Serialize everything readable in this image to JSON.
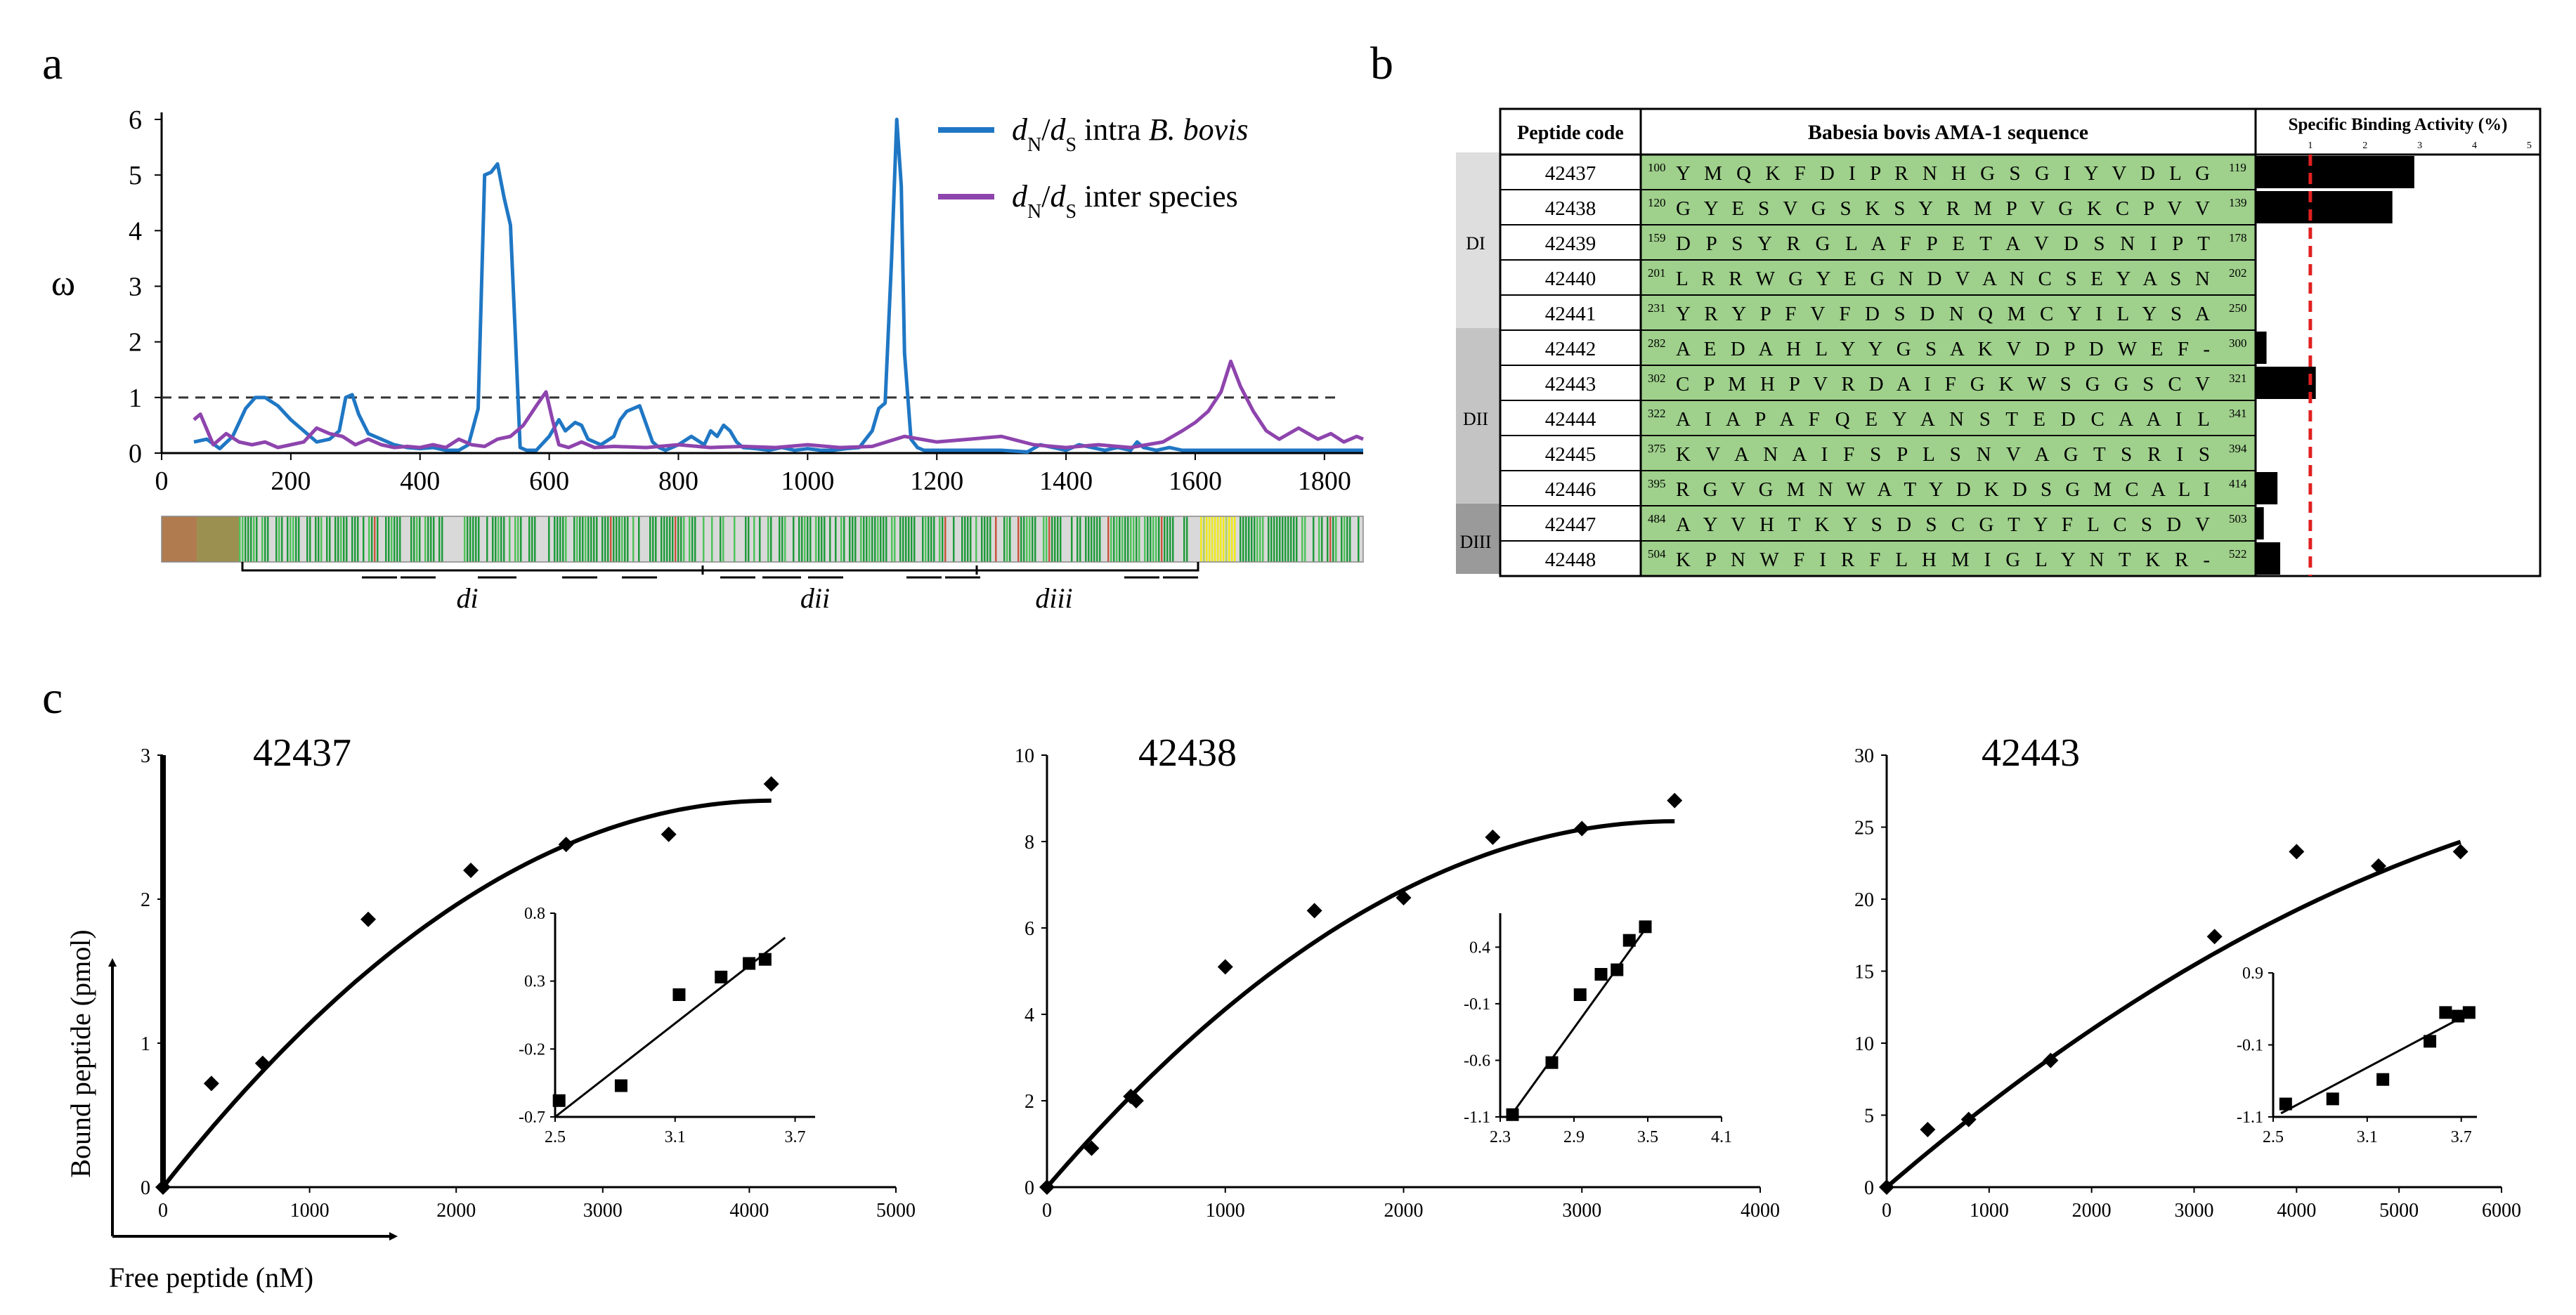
{
  "panel_labels": {
    "a": "a",
    "b": "b",
    "c": "c"
  },
  "panel_a": {
    "ylabel": "ω",
    "legend": [
      {
        "parts": [
          "d",
          "N",
          "/",
          "d",
          "S",
          " intra ",
          "B. bovis"
        ],
        "color": "#1f77c4"
      },
      {
        "parts": [
          "d",
          "N",
          "/",
          "d",
          "S",
          " inter species"
        ],
        "color": "#8e44ad"
      }
    ],
    "domain_labels": [
      "di",
      "dii",
      "diii"
    ],
    "threshold": 1,
    "chart_data": {
      "type": "line",
      "xlim": [
        0,
        1860
      ],
      "ylim": [
        0,
        6
      ],
      "x_ticks": [
        0,
        200,
        400,
        600,
        800,
        1000,
        1200,
        1400,
        1600,
        1800
      ],
      "y_ticks": [
        0,
        1,
        2,
        3,
        4,
        5,
        6
      ],
      "threshold_line": 1,
      "series": [
        {
          "name": "dN/dS intra B. bovis",
          "color": "#1f77c4",
          "x": [
            50,
            70,
            90,
            110,
            130,
            145,
            160,
            180,
            200,
            220,
            240,
            260,
            275,
            285,
            295,
            305,
            320,
            340,
            360,
            380,
            400,
            420,
            440,
            460,
            475,
            490,
            500,
            510,
            520,
            530,
            540,
            548,
            555,
            565,
            580,
            600,
            615,
            625,
            640,
            650,
            660,
            680,
            700,
            710,
            720,
            740,
            760,
            770,
            780,
            800,
            820,
            840,
            850,
            860,
            870,
            880,
            890,
            900,
            920,
            940,
            960,
            980,
            1000,
            1020,
            1040,
            1060,
            1080,
            1100,
            1110,
            1120,
            1130,
            1138,
            1145,
            1150,
            1160,
            1170,
            1180,
            1200,
            1300,
            1340,
            1360,
            1380,
            1400,
            1420,
            1440,
            1460,
            1480,
            1500,
            1510,
            1520,
            1540,
            1560,
            1580,
            1600,
            1650,
            1700,
            1750,
            1800,
            1860
          ],
          "values": [
            0.2,
            0.25,
            0.08,
            0.3,
            0.8,
            1.0,
            1.0,
            0.85,
            0.6,
            0.4,
            0.2,
            0.25,
            0.4,
            1.0,
            1.05,
            0.7,
            0.35,
            0.25,
            0.15,
            0.1,
            0.08,
            0.1,
            0.05,
            0.05,
            0.15,
            0.8,
            5.0,
            5.05,
            5.2,
            4.6,
            4.1,
            2.0,
            0.1,
            0.05,
            0.05,
            0.3,
            0.6,
            0.4,
            0.55,
            0.5,
            0.25,
            0.15,
            0.3,
            0.6,
            0.75,
            0.85,
            0.2,
            0.1,
            0.05,
            0.15,
            0.3,
            0.15,
            0.4,
            0.3,
            0.5,
            0.4,
            0.2,
            0.1,
            0.08,
            0.05,
            0.1,
            0.05,
            0.08,
            0.05,
            0.05,
            0.08,
            0.1,
            0.4,
            0.8,
            0.9,
            3.5,
            6.0,
            4.8,
            1.8,
            0.25,
            0.1,
            0.05,
            0.05,
            0.05,
            0.02,
            0.15,
            0.1,
            0.05,
            0.15,
            0.1,
            0.05,
            0.1,
            0.05,
            0.2,
            0.1,
            0.05,
            0.1,
            0.05,
            0.05,
            0.05,
            0.05,
            0.05,
            0.05,
            0.05
          ]
        },
        {
          "name": "dN/dS inter species",
          "color": "#8e44ad",
          "x": [
            50,
            60,
            80,
            100,
            120,
            140,
            160,
            180,
            200,
            220,
            240,
            260,
            280,
            300,
            320,
            340,
            360,
            380,
            400,
            420,
            440,
            460,
            480,
            500,
            520,
            540,
            560,
            580,
            595,
            605,
            615,
            630,
            650,
            670,
            700,
            750,
            800,
            850,
            900,
            950,
            1000,
            1050,
            1100,
            1150,
            1200,
            1250,
            1300,
            1350,
            1400,
            1450,
            1500,
            1550,
            1580,
            1600,
            1620,
            1640,
            1655,
            1670,
            1690,
            1710,
            1730,
            1760,
            1790,
            1810,
            1830,
            1850,
            1860
          ],
          "values": [
            0.6,
            0.7,
            0.15,
            0.35,
            0.2,
            0.15,
            0.2,
            0.1,
            0.15,
            0.2,
            0.45,
            0.35,
            0.3,
            0.15,
            0.25,
            0.15,
            0.1,
            0.12,
            0.1,
            0.15,
            0.1,
            0.25,
            0.15,
            0.12,
            0.25,
            0.3,
            0.5,
            0.85,
            1.1,
            0.6,
            0.15,
            0.1,
            0.2,
            0.1,
            0.12,
            0.1,
            0.15,
            0.1,
            0.12,
            0.1,
            0.15,
            0.1,
            0.12,
            0.3,
            0.2,
            0.25,
            0.3,
            0.15,
            0.1,
            0.15,
            0.1,
            0.2,
            0.4,
            0.55,
            0.75,
            1.1,
            1.65,
            1.2,
            0.75,
            0.4,
            0.25,
            0.45,
            0.25,
            0.35,
            0.2,
            0.3,
            0.25
          ]
        }
      ]
    }
  },
  "panel_b": {
    "headers": {
      "code": "Peptide code",
      "seq": "Babesia bovis AMA-1 sequence",
      "act": "Specific Binding Activity (%)"
    },
    "act_ticks": [
      "1",
      "2",
      "3",
      "4",
      "5"
    ],
    "threshold": 1,
    "domains": [
      "DI",
      "DII",
      "DIII"
    ],
    "rows": [
      {
        "code": "42437",
        "start": "100",
        "seq": "Y M Q K F D I P R N H G S G I Y V D L G",
        "end": "119",
        "activity": 2.9
      },
      {
        "code": "42438",
        "start": "120",
        "seq": "G Y E S V G S K S Y R M P V G K C P V V",
        "end": "139",
        "activity": 2.5
      },
      {
        "code": "42439",
        "start": "159",
        "seq": "D P S Y R G L A F P E T A V D S N I P T",
        "end": "178",
        "activity": 0
      },
      {
        "code": "42440",
        "start": "201",
        "seq": "L R R W G Y E G N D V A N C S E Y A S N",
        "end": "202",
        "activity": 0
      },
      {
        "code": "42441",
        "start": "231",
        "seq": "Y R Y P F V F D S D N Q M C Y I L Y S A",
        "end": "250",
        "activity": 0
      },
      {
        "code": "42442",
        "start": "282",
        "seq": "A E D A H L Y Y G S A K V D P D W E F -",
        "end": "300",
        "activity": 0.2
      },
      {
        "code": "42443",
        "start": "302",
        "seq": "C P M H P V R D A I F G K W S G G S C V",
        "end": "321",
        "activity": 1.1
      },
      {
        "code": "42444",
        "start": "322",
        "seq": "A I A P A F Q E Y A N S T E D C A A I L",
        "end": "341",
        "activity": 0
      },
      {
        "code": "42445",
        "start": "375",
        "seq": "K V A N A I F S P L S N V A G T S R I S",
        "end": "394",
        "activity": 0
      },
      {
        "code": "42446",
        "start": "395",
        "seq": "R G V G M N W A T Y D K D S G M C A L I",
        "end": "414",
        "activity": 0.4
      },
      {
        "code": "42447",
        "start": "484",
        "seq": "A Y V H T K Y S D S C G T Y F L C S D V",
        "end": "503",
        "activity": 0.15
      },
      {
        "code": "42448",
        "start": "504",
        "seq": "K P N W F I R F L H M I G L Y N T K R -",
        "end": "522",
        "activity": 0.45
      }
    ]
  },
  "panel_c": {
    "ylabel": "Bound peptide (pmol)",
    "xlabel": "Free peptide (nM)",
    "chart_data": [
      {
        "type": "scatter",
        "title": "42437",
        "xlim": [
          0,
          5000
        ],
        "ylim": [
          0,
          3
        ],
        "x_ticks": [
          0,
          1000,
          2000,
          3000,
          4000,
          5000
        ],
        "y_ticks": [
          0,
          1,
          2,
          3
        ],
        "x": [
          0,
          330,
          680,
          1400,
          2100,
          2750,
          3450,
          4150
        ],
        "values": [
          0,
          0.72,
          0.86,
          1.86,
          2.2,
          2.38,
          2.45,
          2.8
        ],
        "fit": {
          "type": "quadratic",
          "a": -1.55e-07,
          "b": 0.00129,
          "c": 0,
          "x_end": 4150
        },
        "inset": {
          "xlim": [
            2.5,
            3.8
          ],
          "ylim": [
            -0.7,
            0.8
          ],
          "x_ticks": [
            2.5,
            3.1,
            3.7
          ],
          "y_ticks": [
            -0.7,
            -0.2,
            0.3,
            0.8
          ],
          "x": [
            2.52,
            2.83,
            3.12,
            3.33,
            3.47,
            3.55
          ],
          "values": [
            -0.58,
            -0.47,
            0.2,
            0.33,
            0.43,
            0.46
          ],
          "fit_line": [
            [
              2.5,
              -0.7
            ],
            [
              3.65,
              0.62
            ]
          ]
        }
      },
      {
        "type": "scatter",
        "title": "42438",
        "xlim": [
          0,
          4000
        ],
        "ylim": [
          0,
          10
        ],
        "x_ticks": [
          0,
          1000,
          2000,
          3000,
          4000
        ],
        "y_ticks": [
          0,
          2,
          4,
          6,
          8,
          10
        ],
        "x": [
          0,
          250,
          470,
          500,
          1000,
          1500,
          2000,
          2500,
          3000,
          3520
        ],
        "values": [
          0,
          0.9,
          2.1,
          2.0,
          5.1,
          6.4,
          6.7,
          8.1,
          8.3,
          8.95
        ],
        "fit": {
          "type": "quadratic",
          "a": -6.8e-07,
          "b": 0.0048,
          "c": 0,
          "x_end": 3520
        },
        "inset": {
          "xlim": [
            2.3,
            4.1
          ],
          "ylim": [
            -1.1,
            0.7
          ],
          "x_ticks": [
            2.3,
            2.9,
            3.5,
            4.1
          ],
          "y_ticks": [
            -1.1,
            -0.6,
            -0.1,
            0.4
          ],
          "x": [
            2.4,
            2.72,
            2.95,
            3.12,
            3.25,
            3.35,
            3.48
          ],
          "values": [
            -1.08,
            -0.62,
            -0.02,
            0.16,
            0.2,
            0.46,
            0.58
          ],
          "fit_line": [
            [
              2.38,
              -1.1
            ],
            [
              3.52,
              0.62
            ]
          ]
        }
      },
      {
        "type": "scatter",
        "title": "42443",
        "xlim": [
          0,
          6000
        ],
        "ylim": [
          0,
          30
        ],
        "x_ticks": [
          0,
          1000,
          2000,
          3000,
          4000,
          5000,
          6000
        ],
        "y_ticks": [
          0,
          5,
          10,
          15,
          20,
          25,
          30
        ],
        "x": [
          0,
          400,
          800,
          1600,
          3200,
          4000,
          4800,
          5600
        ],
        "values": [
          0,
          4.0,
          4.7,
          8.8,
          17.4,
          23.3,
          22.3,
          23.3
        ],
        "fit": {
          "type": "quadratic",
          "a": -3.3e-07,
          "b": 0.00613,
          "c": 0,
          "x_end": 5600
        },
        "inset": {
          "xlim": [
            2.5,
            3.8
          ],
          "ylim": [
            -1.1,
            0.9
          ],
          "x_ticks": [
            2.5,
            3.1,
            3.7
          ],
          "y_ticks": [
            -1.1,
            -0.1,
            0.9
          ],
          "x": [
            2.58,
            2.88,
            3.2,
            3.5,
            3.6,
            3.68,
            3.75
          ],
          "values": [
            -0.92,
            -0.85,
            -0.58,
            -0.05,
            0.35,
            0.3,
            0.35
          ],
          "fit_line": [
            [
              2.55,
              -1.05
            ],
            [
              3.72,
              0.3
            ]
          ]
        }
      }
    ]
  }
}
